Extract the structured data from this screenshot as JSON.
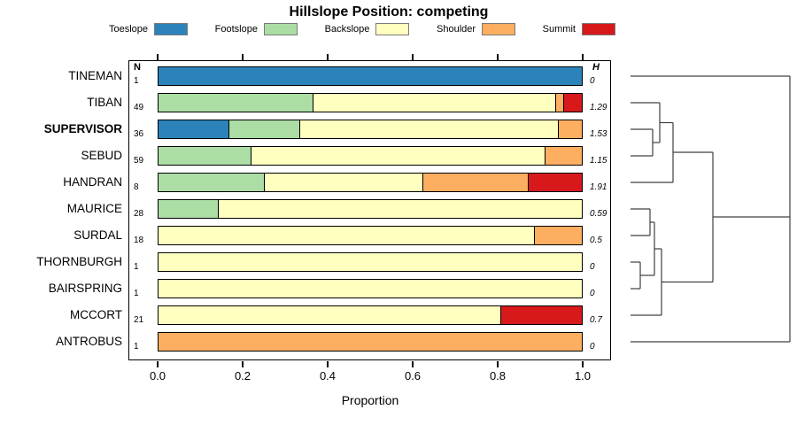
{
  "title": "Hillslope Position: competing",
  "columns": {
    "n_header": "N",
    "h_header": "H"
  },
  "x_axis": {
    "tick_labels": [
      "0.0",
      "0.2",
      "0.4",
      "0.6",
      "0.8",
      "1.0"
    ],
    "label": "Proportion",
    "min": 0,
    "max": 1
  },
  "legend": [
    {
      "label": "Toeslope",
      "color": "#2B83BA"
    },
    {
      "label": "Footslope",
      "color": "#ABDDA4"
    },
    {
      "label": "Backslope",
      "color": "#FFFFBF"
    },
    {
      "label": "Shoulder",
      "color": "#FDAE61"
    },
    {
      "label": "Summit",
      "color": "#D7191C"
    }
  ],
  "chart_data": {
    "type": "bar",
    "orientation": "horizontal",
    "stacked": true,
    "title": "Hillslope Position: competing",
    "xlabel": "Proportion",
    "xlim": [
      0,
      1
    ],
    "grid": false,
    "categories": [
      "Toeslope",
      "Footslope",
      "Backslope",
      "Shoulder",
      "Summit"
    ],
    "palette": {
      "Toeslope": "#2B83BA",
      "Footslope": "#ABDDA4",
      "Backslope": "#FFFFBF",
      "Shoulder": "#FDAE61",
      "Summit": "#D7191C"
    },
    "rows": [
      {
        "label": "TINEMAN",
        "n": 1,
        "h": "0",
        "bold": false,
        "segments": [
          {
            "category": "Toeslope",
            "value": 1.0
          }
        ]
      },
      {
        "label": "TIBAN",
        "n": 49,
        "h": "1.29",
        "bold": false,
        "segments": [
          {
            "category": "Footslope",
            "value": 0.367
          },
          {
            "category": "Backslope",
            "value": 0.572
          },
          {
            "category": "Shoulder",
            "value": 0.02
          },
          {
            "category": "Summit",
            "value": 0.041
          }
        ]
      },
      {
        "label": "SUPERVISOR",
        "n": 36,
        "h": "1.53",
        "bold": true,
        "segments": [
          {
            "category": "Toeslope",
            "value": 0.167
          },
          {
            "category": "Footslope",
            "value": 0.167
          },
          {
            "category": "Backslope",
            "value": 0.611
          },
          {
            "category": "Shoulder",
            "value": 0.055
          }
        ]
      },
      {
        "label": "SEBUD",
        "n": 59,
        "h": "1.15",
        "bold": false,
        "segments": [
          {
            "category": "Footslope",
            "value": 0.22
          },
          {
            "category": "Backslope",
            "value": 0.695
          },
          {
            "category": "Shoulder",
            "value": 0.085
          }
        ]
      },
      {
        "label": "HANDRAN",
        "n": 8,
        "h": "1.91",
        "bold": false,
        "segments": [
          {
            "category": "Footslope",
            "value": 0.25
          },
          {
            "category": "Backslope",
            "value": 0.375
          },
          {
            "category": "Shoulder",
            "value": 0.25
          },
          {
            "category": "Summit",
            "value": 0.125
          }
        ]
      },
      {
        "label": "MAURICE",
        "n": 28,
        "h": "0.59",
        "bold": false,
        "segments": [
          {
            "category": "Footslope",
            "value": 0.143
          },
          {
            "category": "Backslope",
            "value": 0.857
          }
        ]
      },
      {
        "label": "SURDAL",
        "n": 18,
        "h": "0.5",
        "bold": false,
        "segments": [
          {
            "category": "Backslope",
            "value": 0.889
          },
          {
            "category": "Shoulder",
            "value": 0.111
          }
        ]
      },
      {
        "label": "THORNBURGH",
        "n": 1,
        "h": "0",
        "bold": false,
        "segments": [
          {
            "category": "Backslope",
            "value": 1.0
          }
        ]
      },
      {
        "label": "BAIRSPRING",
        "n": 1,
        "h": "0",
        "bold": false,
        "segments": [
          {
            "category": "Backslope",
            "value": 1.0
          }
        ]
      },
      {
        "label": "MCCORT",
        "n": 21,
        "h": "0.7",
        "bold": false,
        "segments": [
          {
            "category": "Backslope",
            "value": 0.81
          },
          {
            "category": "Summit",
            "value": 0.19
          }
        ]
      },
      {
        "label": "ANTROBUS",
        "n": 1,
        "h": "0",
        "bold": false,
        "segments": [
          {
            "category": "Shoulder",
            "value": 1.0
          }
        ]
      }
    ]
  },
  "dendrogram": {
    "stroke": "#404040",
    "segments": [
      [
        712,
        86,
        892,
        86
      ],
      [
        712,
        116,
        745,
        116
      ],
      [
        712,
        146,
        737,
        146
      ],
      [
        712,
        176,
        737,
        176
      ],
      [
        712,
        206,
        760,
        206
      ],
      [
        712,
        236,
        734,
        236
      ],
      [
        712,
        266,
        734,
        266
      ],
      [
        712,
        296,
        723,
        296
      ],
      [
        712,
        326,
        723,
        326
      ],
      [
        712,
        356,
        747,
        356
      ],
      [
        712,
        386,
        892,
        386
      ],
      [
        737,
        146,
        737,
        176
      ],
      [
        737,
        161,
        745,
        161
      ],
      [
        745,
        116,
        745,
        161
      ],
      [
        745,
        138.5,
        760,
        138.5
      ],
      [
        760,
        138.5,
        760,
        206
      ],
      [
        760,
        172,
        805,
        172
      ],
      [
        734,
        236,
        734,
        266
      ],
      [
        734,
        251,
        739,
        251
      ],
      [
        723,
        296,
        723,
        326
      ],
      [
        723,
        311,
        739,
        311
      ],
      [
        739,
        251,
        739,
        311
      ],
      [
        739,
        281,
        747,
        281
      ],
      [
        747,
        281,
        747,
        356
      ],
      [
        747,
        318.5,
        805,
        318.5
      ],
      [
        805,
        172,
        805,
        318.5
      ],
      [
        805,
        245,
        892,
        245
      ],
      [
        892,
        86,
        892,
        386
      ]
    ]
  }
}
